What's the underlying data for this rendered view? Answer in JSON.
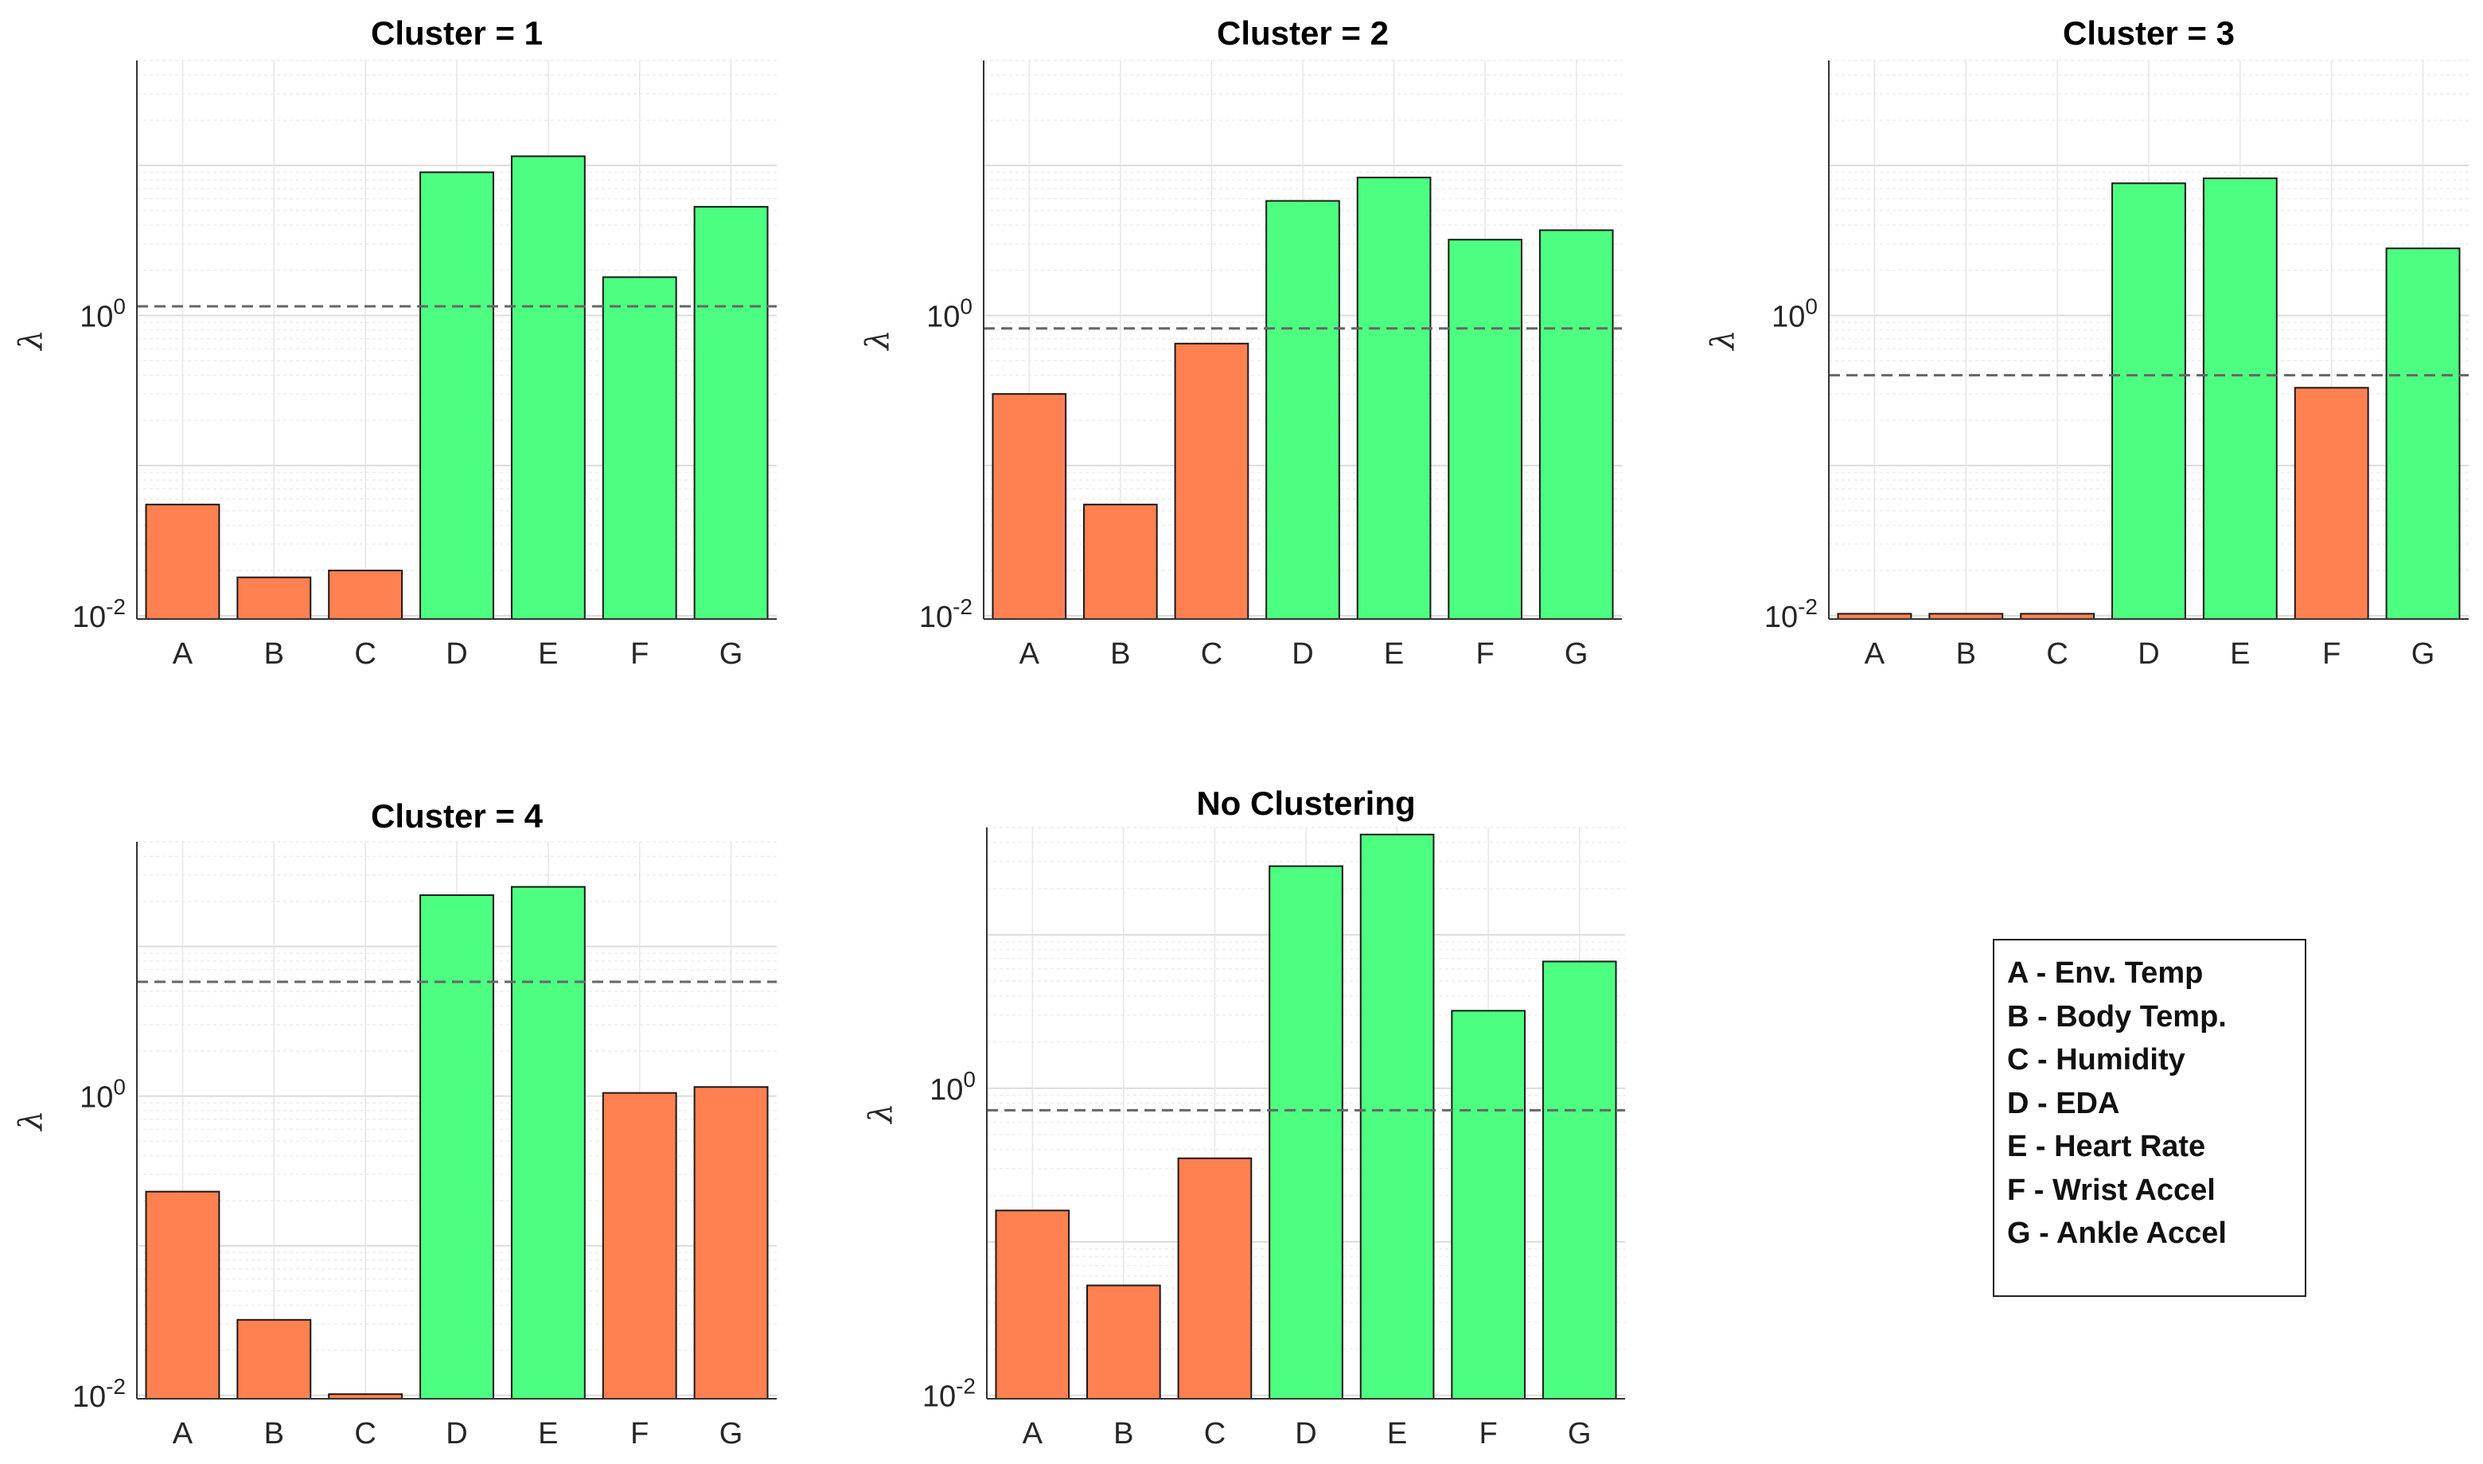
{
  "chart_data": [
    {
      "type": "bar",
      "title": "Cluster = 1",
      "ylabel": "λ",
      "yscale": "log",
      "categories": [
        "A",
        "B",
        "C",
        "D",
        "E",
        "F",
        "G"
      ],
      "values": [
        0.055,
        0.018,
        0.02,
        9.0,
        11.5,
        1.8,
        5.3
      ],
      "colors": [
        "#FF8050",
        "#FF8050",
        "#FF8050",
        "#4DFF80",
        "#4DFF80",
        "#4DFF80",
        "#4DFF80"
      ],
      "threshold": 1.15,
      "ylim": [
        0.0095,
        50
      ],
      "yticks": [
        {
          "value": 0.01,
          "base": "10",
          "exp": "-2"
        },
        {
          "value": 1,
          "base": "10",
          "exp": "0"
        }
      ]
    },
    {
      "type": "bar",
      "title": "Cluster = 2",
      "ylabel": "λ",
      "yscale": "log",
      "categories": [
        "A",
        "B",
        "C",
        "D",
        "E",
        "F",
        "G"
      ],
      "values": [
        0.3,
        0.055,
        0.65,
        5.8,
        8.3,
        3.2,
        3.7
      ],
      "colors": [
        "#FF8050",
        "#FF8050",
        "#FF8050",
        "#4DFF80",
        "#4DFF80",
        "#4DFF80",
        "#4DFF80"
      ],
      "threshold": 0.82,
      "ylim": [
        0.0095,
        50
      ],
      "yticks": [
        {
          "value": 0.01,
          "base": "10",
          "exp": "-2"
        },
        {
          "value": 1,
          "base": "10",
          "exp": "0"
        }
      ]
    },
    {
      "type": "bar",
      "title": "Cluster = 3",
      "ylabel": "λ",
      "yscale": "log",
      "categories": [
        "A",
        "B",
        "C",
        "D",
        "E",
        "F",
        "G"
      ],
      "values": [
        0.0103,
        0.0103,
        0.0103,
        7.6,
        8.2,
        0.33,
        2.8
      ],
      "colors": [
        "#FF8050",
        "#FF8050",
        "#FF8050",
        "#4DFF80",
        "#4DFF80",
        "#FF8050",
        "#4DFF80"
      ],
      "threshold": 0.4,
      "ylim": [
        0.0095,
        50
      ],
      "yticks": [
        {
          "value": 0.01,
          "base": "10",
          "exp": "-2"
        },
        {
          "value": 1,
          "base": "10",
          "exp": "0"
        }
      ]
    },
    {
      "type": "bar",
      "title": "Cluster = 4",
      "ylabel": "λ",
      "yscale": "log",
      "categories": [
        "A",
        "B",
        "C",
        "D",
        "E",
        "F",
        "G"
      ],
      "values": [
        0.23,
        0.032,
        0.0102,
        22.0,
        25.0,
        1.05,
        1.15
      ],
      "colors": [
        "#FF8050",
        "#FF8050",
        "#FF8050",
        "#4DFF80",
        "#4DFF80",
        "#FF8050",
        "#FF8050"
      ],
      "threshold": 5.8,
      "ylim": [
        0.0095,
        50
      ],
      "yticks": [
        {
          "value": 0.01,
          "base": "10",
          "exp": "-2"
        },
        {
          "value": 1,
          "base": "10",
          "exp": "0"
        }
      ]
    },
    {
      "type": "bar",
      "title": "No Clustering",
      "ylabel": "λ",
      "yscale": "log",
      "categories": [
        "A",
        "B",
        "C",
        "D",
        "E",
        "F",
        "G"
      ],
      "values": [
        0.16,
        0.052,
        0.35,
        28.0,
        45.0,
        3.2,
        6.7
      ],
      "colors": [
        "#FF8050",
        "#FF8050",
        "#FF8050",
        "#4DFF80",
        "#4DFF80",
        "#4DFF80",
        "#4DFF80"
      ],
      "threshold": 0.72,
      "ylim": [
        0.0095,
        50
      ],
      "yticks": [
        {
          "value": 0.01,
          "base": "10",
          "exp": "-2"
        },
        {
          "value": 1,
          "base": "10",
          "exp": "0"
        }
      ]
    }
  ],
  "legend": {
    "items": [
      "A - Env. Temp",
      "B - Body Temp.",
      "C - Humidity",
      "D - EDA",
      "E - Heart Rate",
      "F - Wrist Accel",
      "G - Ankle Accel"
    ]
  }
}
